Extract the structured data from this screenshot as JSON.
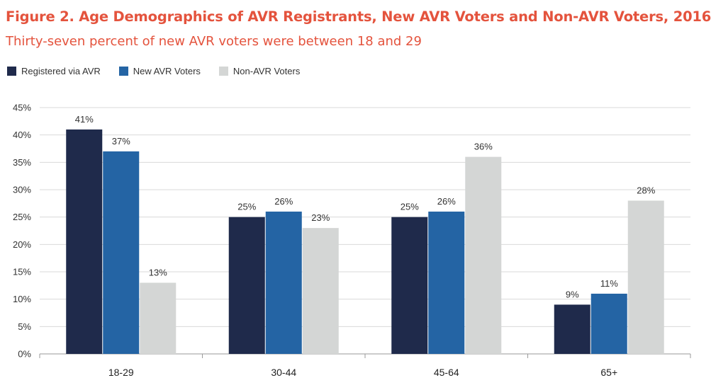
{
  "chart_data": {
    "type": "bar",
    "title": "Figure 2. Age Demographics of AVR Registrants, New AVR Voters and Non-AVR Voters, 2016",
    "subtitle": "Thirty-seven percent of new AVR voters were between 18 and 29",
    "xlabel": "",
    "ylabel": "",
    "categories": [
      "18-29",
      "30-44",
      "45-64",
      "65+"
    ],
    "series": [
      {
        "name": "Registered via AVR",
        "values": [
          41,
          25,
          25,
          9
        ],
        "labels": [
          "41%",
          "25%",
          "25%",
          "9%"
        ],
        "color": "#1f2a4b"
      },
      {
        "name": "New AVR Voters",
        "values": [
          37,
          26,
          26,
          11
        ],
        "labels": [
          "37%",
          "26%",
          "26%",
          "11%"
        ],
        "color": "#2464a4"
      },
      {
        "name": "Non-AVR Voters",
        "values": [
          13,
          23,
          36,
          28
        ],
        "labels": [
          "13%",
          "23%",
          "36%",
          "28%"
        ],
        "color": "#d4d6d5"
      }
    ],
    "ylim": [
      0,
      45
    ],
    "yticks": [
      0,
      5,
      10,
      15,
      20,
      25,
      30,
      35,
      40,
      45
    ],
    "ytick_labels": [
      "0%",
      "5%",
      "10%",
      "15%",
      "20%",
      "25%",
      "30%",
      "35%",
      "40%",
      "45%"
    ],
    "grid": true,
    "legend_position": "top-left"
  }
}
